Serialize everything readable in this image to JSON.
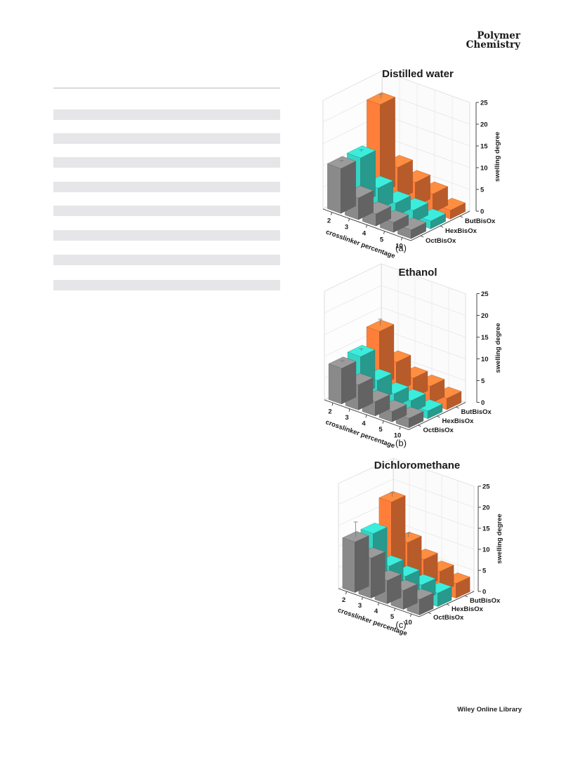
{
  "header": {
    "journal_line1": "Polymer",
    "journal_line2": "Chemistry"
  },
  "footer": {
    "publisher": "Wiley Online Library"
  },
  "colors": {
    "ButBisOx": "#ff7f3a",
    "HexBisOx": "#36d4c4",
    "OctBisOx": "#8a8a8a"
  },
  "chart_data": [
    {
      "type": "bar",
      "title": "Distilled water",
      "panel_label": "(a)",
      "xlabel": "crosslinker percentage",
      "zlabel": "swelling degree",
      "categories": [
        "2",
        "3",
        "4",
        "5",
        "10"
      ],
      "zlim": [
        0,
        25
      ],
      "zticks": [
        "0",
        "5",
        "10",
        "15",
        "20",
        "25"
      ],
      "series": [
        {
          "name": "ButBisOx",
          "values": [
            20.5,
            7.5,
            5.5,
            4.3,
            2.0
          ],
          "errors": [
            1.0,
            0,
            0,
            0,
            0
          ]
        },
        {
          "name": "HexBisOx",
          "values": [
            10.5,
            5.0,
            3.0,
            2.8,
            1.8
          ],
          "errors": [
            0.5,
            0,
            0,
            0,
            0
          ]
        },
        {
          "name": "OctBisOx",
          "values": [
            10.3,
            5.0,
            2.8,
            2.3,
            2.0
          ],
          "errors": [
            0.5,
            0,
            0,
            0,
            0
          ]
        }
      ]
    },
    {
      "type": "bar",
      "title": "Ethanol",
      "panel_label": "(b)",
      "xlabel": "crosslinker percentage",
      "zlabel": "swelling degree",
      "categories": [
        "2",
        "3",
        "4",
        "5",
        "10"
      ],
      "zlim": [
        0,
        25
      ],
      "zticks": [
        "0",
        "5",
        "10",
        "15",
        "20",
        "25"
      ],
      "series": [
        {
          "name": "ButBisOx",
          "values": [
            12.5,
            6.8,
            4.5,
            4.0,
            2.6
          ],
          "errors": [
            1.5,
            0,
            0,
            0,
            0
          ]
        },
        {
          "name": "HexBisOx",
          "values": [
            8.8,
            4.7,
            3.0,
            2.8,
            1.8
          ],
          "errors": [
            0.5,
            0,
            0,
            0,
            0
          ]
        },
        {
          "name": "OctBisOx",
          "values": [
            8.2,
            5.8,
            3.3,
            2.4,
            2.2
          ],
          "errors": [
            0.5,
            0,
            0,
            0,
            0
          ]
        }
      ]
    },
    {
      "type": "bar",
      "title": "Dichloromethane",
      "panel_label": "(c)",
      "xlabel": "crosslinker percentage",
      "zlabel": "swelling degree",
      "categories": [
        "2",
        "3",
        "4",
        "5",
        "10"
      ],
      "zlim": [
        0,
        25
      ],
      "zticks": [
        "0",
        "5",
        "10",
        "15",
        "20",
        "25"
      ],
      "series": [
        {
          "name": "ButBisOx",
          "values": [
            17.5,
            9.2,
            6.5,
            5.0,
            3.5
          ],
          "errors": [
            1.0,
            1.0,
            0,
            0,
            0
          ]
        },
        {
          "name": "HexBisOx",
          "values": [
            12.0,
            5.6,
            4.5,
            3.8,
            3.2
          ],
          "errors": [
            0,
            0,
            0,
            0,
            0
          ]
        },
        {
          "name": "OctBisOx",
          "values": [
            12.0,
            9.5,
            5.5,
            4.5,
            3.7
          ],
          "errors": [
            3.5,
            0,
            0,
            0,
            0
          ]
        }
      ]
    }
  ]
}
